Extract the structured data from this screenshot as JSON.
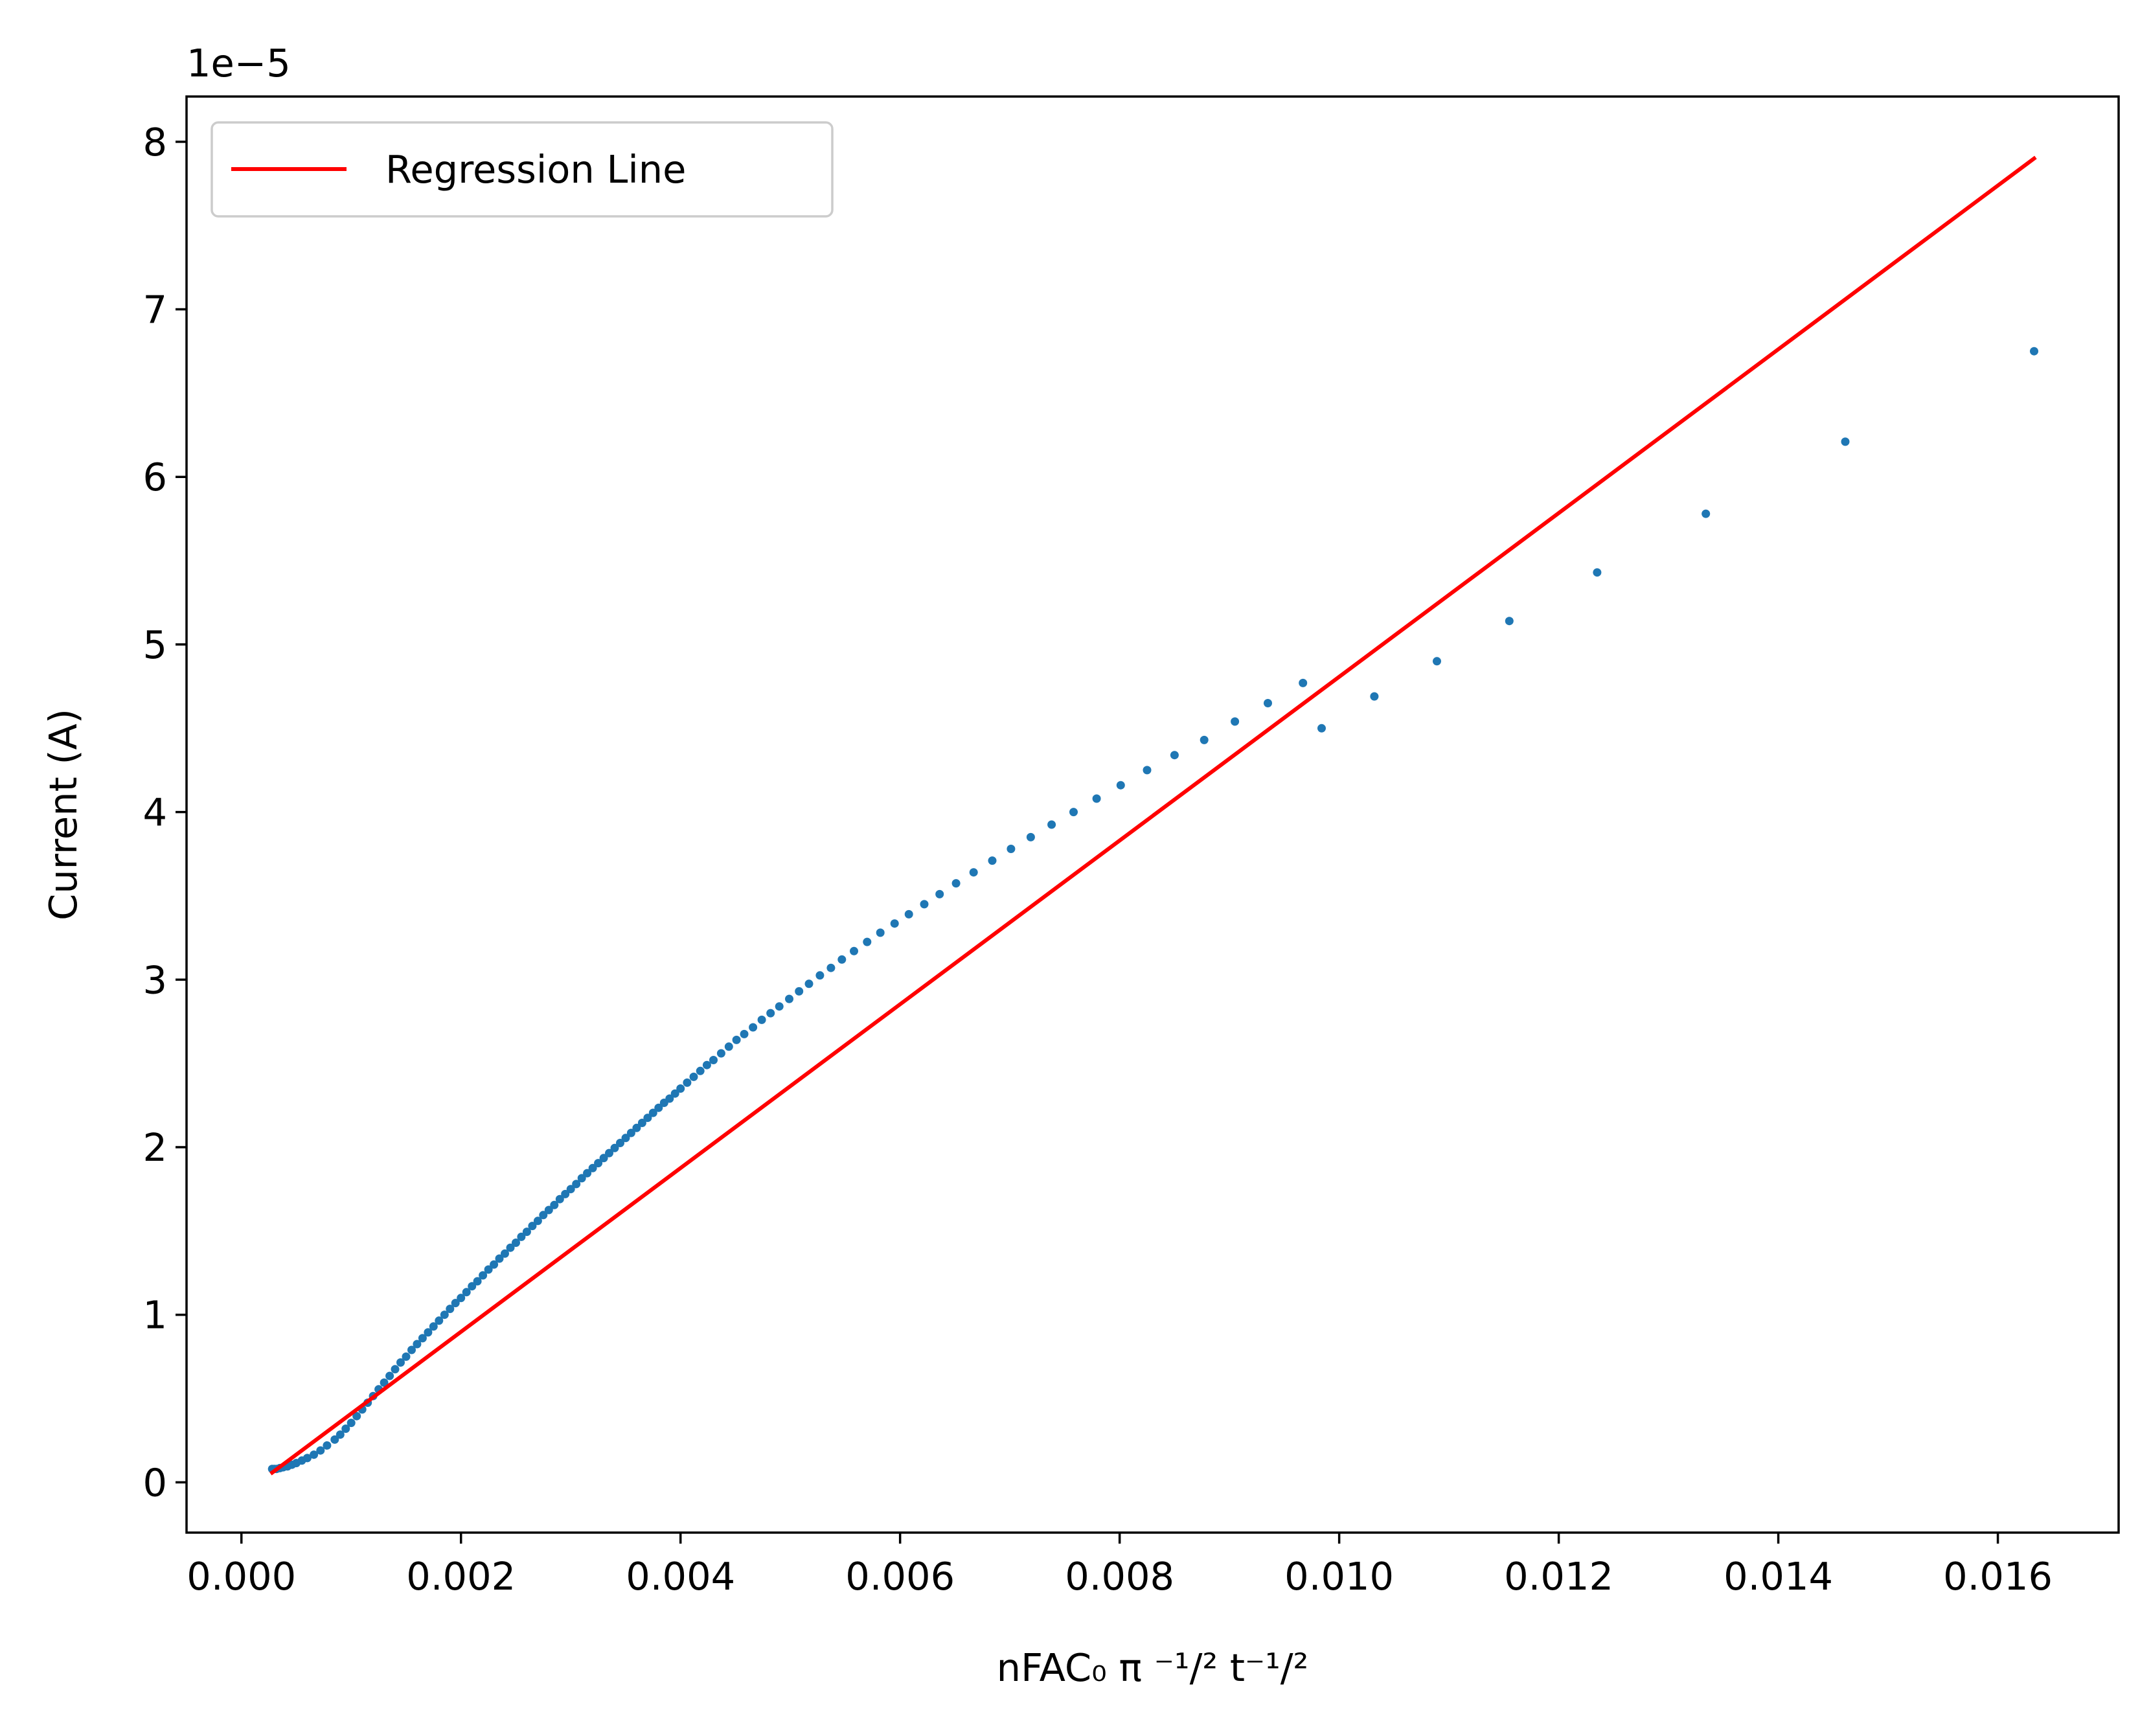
{
  "chart_data": {
    "type": "scatter",
    "xlabel": "nFAC₀ π ⁻¹/² t⁻¹/²",
    "ylabel": "Current (A)",
    "y_offset_text": "1e−5",
    "xlim": [
      -0.0005,
      0.0171
    ],
    "ylim": [
      -3e-06,
      8.27e-05
    ],
    "x_ticks": [
      0.0,
      0.002,
      0.004,
      0.006,
      0.008,
      0.01,
      0.012,
      0.014,
      0.016
    ],
    "x_tick_labels": [
      "0.000",
      "0.002",
      "0.004",
      "0.006",
      "0.008",
      "0.010",
      "0.012",
      "0.014",
      "0.016"
    ],
    "y_ticks": [
      0,
      1e-05,
      2e-05,
      3e-05,
      4e-05,
      5e-05,
      6e-05,
      7e-05,
      8e-05
    ],
    "y_tick_labels": [
      "0",
      "1",
      "2",
      "3",
      "4",
      "5",
      "6",
      "7",
      "8"
    ],
    "grid": false,
    "legend_position": "upper-left",
    "colors": {
      "scatter": "#1f77b4",
      "regression": "#ff0000"
    },
    "series": [
      {
        "kind": "scatter",
        "points": [
          [
            0.00028,
            8e-07
          ],
          [
            0.0003,
            8e-07
          ],
          [
            0.00032,
            8e-07
          ],
          [
            0.00035,
            8.5e-07
          ],
          [
            0.00038,
            9e-07
          ],
          [
            0.00042,
            9.5e-07
          ],
          [
            0.00046,
            1.05e-06
          ],
          [
            0.0005,
            1.15e-06
          ],
          [
            0.00055,
            1.3e-06
          ],
          [
            0.0006,
            1.45e-06
          ],
          [
            0.00066,
            1.65e-06
          ],
          [
            0.00072,
            1.9e-06
          ],
          [
            0.00078,
            2.2e-06
          ],
          [
            0.00085,
            2.55e-06
          ],
          [
            0.0009,
            2.85e-06
          ],
          [
            0.00095,
            3.2e-06
          ],
          [
            0.001,
            3.55e-06
          ],
          [
            0.00105,
            3.95e-06
          ],
          [
            0.0011,
            4.35e-06
          ],
          [
            0.00115,
            4.75e-06
          ],
          [
            0.0012,
            5.15e-06
          ],
          [
            0.00125,
            5.55e-06
          ],
          [
            0.0013,
            5.95e-06
          ],
          [
            0.00135,
            6.35e-06
          ],
          [
            0.0014,
            6.75e-06
          ],
          [
            0.00145,
            7.15e-06
          ],
          [
            0.0015,
            7.5e-06
          ],
          [
            0.00155,
            7.9e-06
          ],
          [
            0.0016,
            8.25e-06
          ],
          [
            0.00165,
            8.6e-06
          ],
          [
            0.0017,
            8.95e-06
          ],
          [
            0.00175,
            9.3e-06
          ],
          [
            0.0018,
            9.65e-06
          ],
          [
            0.00185,
            1e-05
          ],
          [
            0.0019,
            1.035e-05
          ],
          [
            0.00195,
            1.07e-05
          ],
          [
            0.002,
            1.1e-05
          ],
          [
            0.00205,
            1.135e-05
          ],
          [
            0.0021,
            1.17e-05
          ],
          [
            0.00215,
            1.2e-05
          ],
          [
            0.0022,
            1.235e-05
          ],
          [
            0.00225,
            1.27e-05
          ],
          [
            0.0023,
            1.3e-05
          ],
          [
            0.00235,
            1.335e-05
          ],
          [
            0.0024,
            1.365e-05
          ],
          [
            0.00245,
            1.4e-05
          ],
          [
            0.0025,
            1.43e-05
          ],
          [
            0.00255,
            1.465e-05
          ],
          [
            0.0026,
            1.495e-05
          ],
          [
            0.00265,
            1.53e-05
          ],
          [
            0.0027,
            1.56e-05
          ],
          [
            0.00275,
            1.595e-05
          ],
          [
            0.0028,
            1.625e-05
          ],
          [
            0.00285,
            1.655e-05
          ],
          [
            0.0029,
            1.69e-05
          ],
          [
            0.00295,
            1.72e-05
          ],
          [
            0.003,
            1.75e-05
          ],
          [
            0.00305,
            1.78e-05
          ],
          [
            0.0031,
            1.815e-05
          ],
          [
            0.00315,
            1.845e-05
          ],
          [
            0.0032,
            1.875e-05
          ],
          [
            0.00325,
            1.905e-05
          ],
          [
            0.0033,
            1.935e-05
          ],
          [
            0.00335,
            1.965e-05
          ],
          [
            0.0034,
            1.995e-05
          ],
          [
            0.00345,
            2.025e-05
          ],
          [
            0.0035,
            2.055e-05
          ],
          [
            0.00355,
            2.085e-05
          ],
          [
            0.0036,
            2.115e-05
          ],
          [
            0.00365,
            2.145e-05
          ],
          [
            0.0037,
            2.175e-05
          ],
          [
            0.00375,
            2.205e-05
          ],
          [
            0.0038,
            2.235e-05
          ],
          [
            0.00385,
            2.265e-05
          ],
          [
            0.0039,
            2.29e-05
          ],
          [
            0.00395,
            2.32e-05
          ],
          [
            0.004,
            2.35e-05
          ],
          [
            0.00406,
            2.385e-05
          ],
          [
            0.00412,
            2.42e-05
          ],
          [
            0.00418,
            2.455e-05
          ],
          [
            0.00424,
            2.49e-05
          ],
          [
            0.0043,
            2.52e-05
          ],
          [
            0.00437,
            2.56e-05
          ],
          [
            0.00444,
            2.6e-05
          ],
          [
            0.00451,
            2.64e-05
          ],
          [
            0.00458,
            2.675e-05
          ],
          [
            0.00466,
            2.715e-05
          ],
          [
            0.00474,
            2.76e-05
          ],
          [
            0.00482,
            2.8e-05
          ],
          [
            0.0049,
            2.84e-05
          ],
          [
            0.00499,
            2.885e-05
          ],
          [
            0.00508,
            2.93e-05
          ],
          [
            0.00517,
            2.975e-05
          ],
          [
            0.00527,
            3.025e-05
          ],
          [
            0.00537,
            3.07e-05
          ],
          [
            0.00547,
            3.12e-05
          ],
          [
            0.00558,
            3.17e-05
          ],
          [
            0.0057,
            3.225e-05
          ],
          [
            0.00582,
            3.28e-05
          ],
          [
            0.00595,
            3.335e-05
          ],
          [
            0.00608,
            3.39e-05
          ],
          [
            0.00622,
            3.45e-05
          ],
          [
            0.00636,
            3.51e-05
          ],
          [
            0.00651,
            3.575e-05
          ],
          [
            0.00667,
            3.64e-05
          ],
          [
            0.00684,
            3.71e-05
          ],
          [
            0.00701,
            3.78e-05
          ],
          [
            0.00719,
            3.85e-05
          ],
          [
            0.00738,
            3.925e-05
          ],
          [
            0.00758,
            4e-05
          ],
          [
            0.00779,
            4.08e-05
          ],
          [
            0.00801,
            4.16e-05
          ],
          [
            0.00825,
            4.25e-05
          ],
          [
            0.0085,
            4.34e-05
          ],
          [
            0.00877,
            4.43e-05
          ],
          [
            0.00905,
            4.54e-05
          ],
          [
            0.00935,
            4.65e-05
          ],
          [
            0.00967,
            4.77e-05
          ],
          [
            0.00984,
            4.5e-05
          ],
          [
            0.01032,
            4.69e-05
          ],
          [
            0.01089,
            4.9e-05
          ],
          [
            0.01155,
            5.14e-05
          ],
          [
            0.01235,
            5.43e-05
          ],
          [
            0.01334,
            5.78e-05
          ],
          [
            0.01461,
            6.21e-05
          ],
          [
            0.01633,
            6.75e-05
          ]
        ]
      },
      {
        "kind": "line",
        "name": "Regression Line",
        "x_range": [
          0.00028,
          0.01633
        ],
        "y_range": [
          5.8e-07,
          7.9e-05
        ]
      }
    ]
  }
}
